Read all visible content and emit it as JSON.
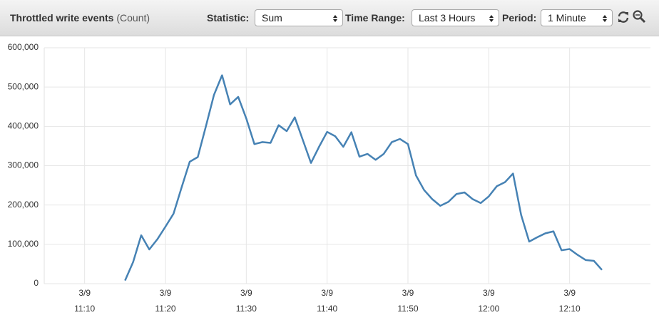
{
  "header": {
    "statistic_label": "Statistic:",
    "statistic_value": "Sum",
    "time_range_label": "Time Range:",
    "time_range_value": "Last 3 Hours",
    "period_label": "Period:",
    "period_value": "1 Minute"
  },
  "chart_data": {
    "type": "line",
    "title": "Throttled write events",
    "units": "(Count)",
    "x": [
      "3/9 11:15",
      "3/9 11:16",
      "3/9 11:17",
      "3/9 11:18",
      "3/9 11:19",
      "3/9 11:20",
      "3/9 11:21",
      "3/9 11:22",
      "3/9 11:23",
      "3/9 11:24",
      "3/9 11:25",
      "3/9 11:26",
      "3/9 11:27",
      "3/9 11:28",
      "3/9 11:29",
      "3/9 11:30",
      "3/9 11:31",
      "3/9 11:32",
      "3/9 11:33",
      "3/9 11:34",
      "3/9 11:35",
      "3/9 11:36",
      "3/9 11:37",
      "3/9 11:38",
      "3/9 11:39",
      "3/9 11:40",
      "3/9 11:41",
      "3/9 11:42",
      "3/9 11:43",
      "3/9 11:44",
      "3/9 11:45",
      "3/9 11:46",
      "3/9 11:47",
      "3/9 11:48",
      "3/9 11:49",
      "3/9 11:50",
      "3/9 11:51",
      "3/9 11:52",
      "3/9 11:53",
      "3/9 11:54",
      "3/9 11:55",
      "3/9 11:56",
      "3/9 11:57",
      "3/9 11:58",
      "3/9 11:59",
      "3/9 12:00",
      "3/9 12:01",
      "3/9 12:02",
      "3/9 12:03",
      "3/9 12:04",
      "3/9 12:05",
      "3/9 12:06",
      "3/9 12:07",
      "3/9 12:08",
      "3/9 12:09",
      "3/9 12:10",
      "3/9 12:11",
      "3/9 12:12",
      "3/9 12:13",
      "3/9 12:14"
    ],
    "values": [
      8000,
      55000,
      123000,
      87000,
      113000,
      145000,
      178000,
      245000,
      310000,
      322000,
      400000,
      480000,
      530000,
      456000,
      475000,
      420000,
      355000,
      360000,
      358000,
      403000,
      388000,
      423000,
      365000,
      307000,
      348000,
      386000,
      375000,
      348000,
      385000,
      323000,
      330000,
      315000,
      330000,
      360000,
      368000,
      355000,
      275000,
      238000,
      215000,
      198000,
      208000,
      228000,
      232000,
      215000,
      205000,
      222000,
      248000,
      258000,
      280000,
      175000,
      107000,
      118000,
      128000,
      133000,
      85000,
      88000,
      73000,
      60000,
      58000,
      35000
    ],
    "color": "#4682b4",
    "xlim": [
      "3/9 11:05",
      "3/9 12:20"
    ],
    "xticks": [
      "3/9 11:10",
      "3/9 11:20",
      "3/9 11:30",
      "3/9 11:40",
      "3/9 11:50",
      "3/9 12:00",
      "3/9 12:10"
    ],
    "ylim": [
      0,
      600000
    ],
    "yticks": [
      0,
      {
        "value": 100000,
        "label": "100,000"
      },
      {
        "value": 200000,
        "label": "200,000"
      },
      {
        "value": 300000,
        "label": "300,000"
      },
      {
        "value": 400000,
        "label": "400,000"
      },
      {
        "value": 500000,
        "label": "500,000"
      },
      {
        "value": 600000,
        "label": "600,000"
      }
    ],
    "grid": true
  }
}
